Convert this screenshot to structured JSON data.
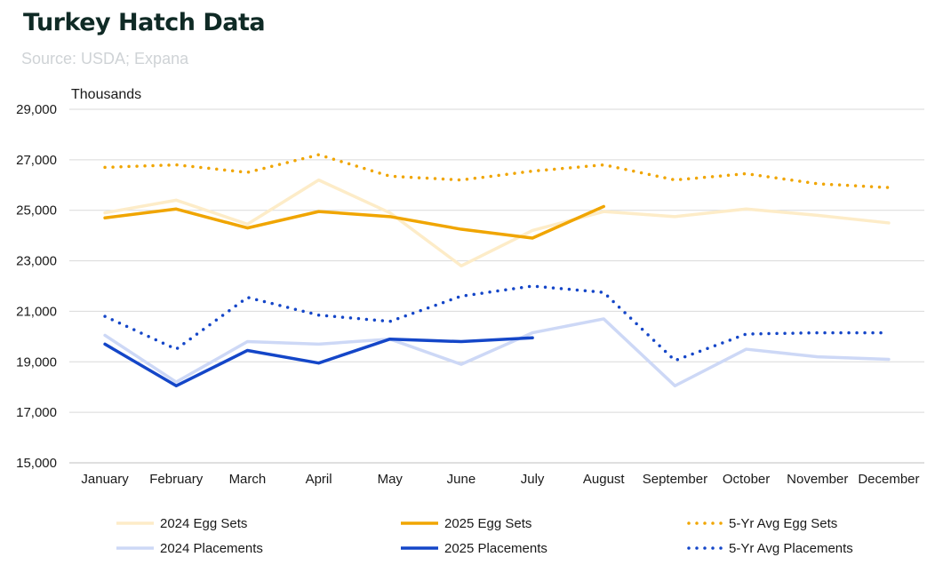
{
  "header": {
    "title": "Turkey Hatch Data",
    "subtitle": "Source: USDA; Expana"
  },
  "colors": {
    "gold": "#f0a500",
    "gold_light": "#fdecc8",
    "blue": "#1446c8",
    "blue_light": "#cdd8f6",
    "grid": "#d9d9d9"
  },
  "chart_data": {
    "type": "line",
    "title": "Turkey Hatch Data",
    "ylabel": "Thousands",
    "xlabel": "",
    "ylim": [
      15000,
      29000
    ],
    "yticks": [
      15000,
      17000,
      19000,
      21000,
      23000,
      25000,
      27000,
      29000
    ],
    "ytick_labels": [
      "15,000",
      "17,000",
      "19,000",
      "21,000",
      "23,000",
      "25,000",
      "27,000",
      "29,000"
    ],
    "grid": true,
    "legend_position": "bottom",
    "categories": [
      "January",
      "February",
      "March",
      "April",
      "May",
      "June",
      "July",
      "August",
      "September",
      "October",
      "November",
      "December"
    ],
    "series": [
      {
        "name": "2024 Egg Sets",
        "color": "#fdecc8",
        "style": "solid",
        "values": [
          24900,
          25400,
          24450,
          26200,
          24900,
          22800,
          24200,
          24950,
          24750,
          25050,
          24800,
          24500
        ]
      },
      {
        "name": "2025 Egg Sets",
        "color": "#f0a500",
        "style": "solid",
        "values": [
          24700,
          25050,
          24300,
          24950,
          24750,
          24250,
          23900,
          25150,
          null,
          null,
          null,
          null
        ]
      },
      {
        "name": "5-Yr Avg Egg Sets",
        "color": "#f0a500",
        "style": "dotted",
        "values": [
          26700,
          26800,
          26500,
          27200,
          26350,
          26200,
          26550,
          26800,
          26200,
          26450,
          26050,
          25900
        ]
      },
      {
        "name": "2024 Placements",
        "color": "#cdd8f6",
        "style": "solid",
        "values": [
          20050,
          18200,
          19800,
          19700,
          19900,
          18900,
          20150,
          20700,
          18050,
          19500,
          19200,
          19100
        ]
      },
      {
        "name": "2025 Placements",
        "color": "#1446c8",
        "style": "solid",
        "values": [
          19700,
          18050,
          19450,
          18950,
          19900,
          19800,
          19950,
          null,
          null,
          null,
          null,
          null
        ]
      },
      {
        "name": "5-Yr Avg Placements",
        "color": "#1446c8",
        "style": "dotted",
        "values": [
          20800,
          19500,
          21550,
          20850,
          20600,
          21600,
          22000,
          21750,
          19050,
          20100,
          20150,
          20150
        ]
      }
    ]
  }
}
